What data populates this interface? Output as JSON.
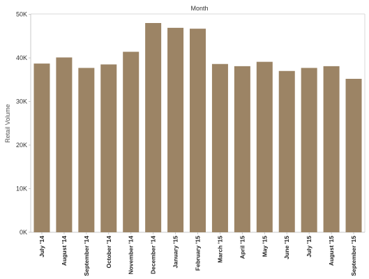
{
  "chart_data": {
    "type": "bar",
    "title": "Month",
    "xlabel": "",
    "ylabel": "Retail Volume",
    "categories": [
      "July '14",
      "August '14",
      "September '14",
      "October '14",
      "November '14",
      "December '14",
      "January '15",
      "February '15",
      "March '15",
      "April '15",
      "May '15",
      "June '15",
      "July '15",
      "August '15",
      "September '15"
    ],
    "values": [
      38700,
      40100,
      37700,
      38500,
      41400,
      48000,
      46900,
      46700,
      38600,
      38100,
      39100,
      37000,
      37700,
      38100,
      35200
    ],
    "ylim": [
      0,
      50000
    ],
    "yticks": [
      0,
      10000,
      20000,
      30000,
      40000,
      50000
    ],
    "ytick_labels": [
      "0K",
      "10K",
      "20K",
      "30K",
      "40K",
      "50K"
    ],
    "grid": false,
    "legend": "none",
    "colors": {
      "bar": "#9c8465",
      "axis": "#c8c8c8"
    }
  }
}
